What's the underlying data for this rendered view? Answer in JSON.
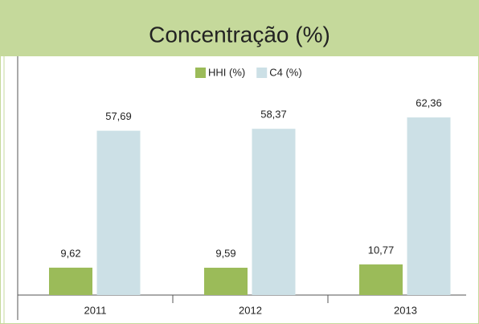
{
  "chart_data": {
    "type": "bar",
    "title": "Concentração (%)",
    "categories": [
      "2011",
      "2012",
      "2013"
    ],
    "series": [
      {
        "name": "HHI (%)",
        "color": "#9bbb59",
        "values": [
          9.62,
          9.59,
          10.77
        ],
        "value_labels": [
          "9,62",
          "9,59",
          "10,77"
        ]
      },
      {
        "name": "C4 (%)",
        "color": "#cce0e6",
        "values": [
          57.69,
          58.37,
          62.36
        ],
        "value_labels": [
          "57,69",
          "58,37",
          "62,36"
        ]
      }
    ],
    "ylim": [
      0,
      70
    ],
    "legend": "top"
  }
}
